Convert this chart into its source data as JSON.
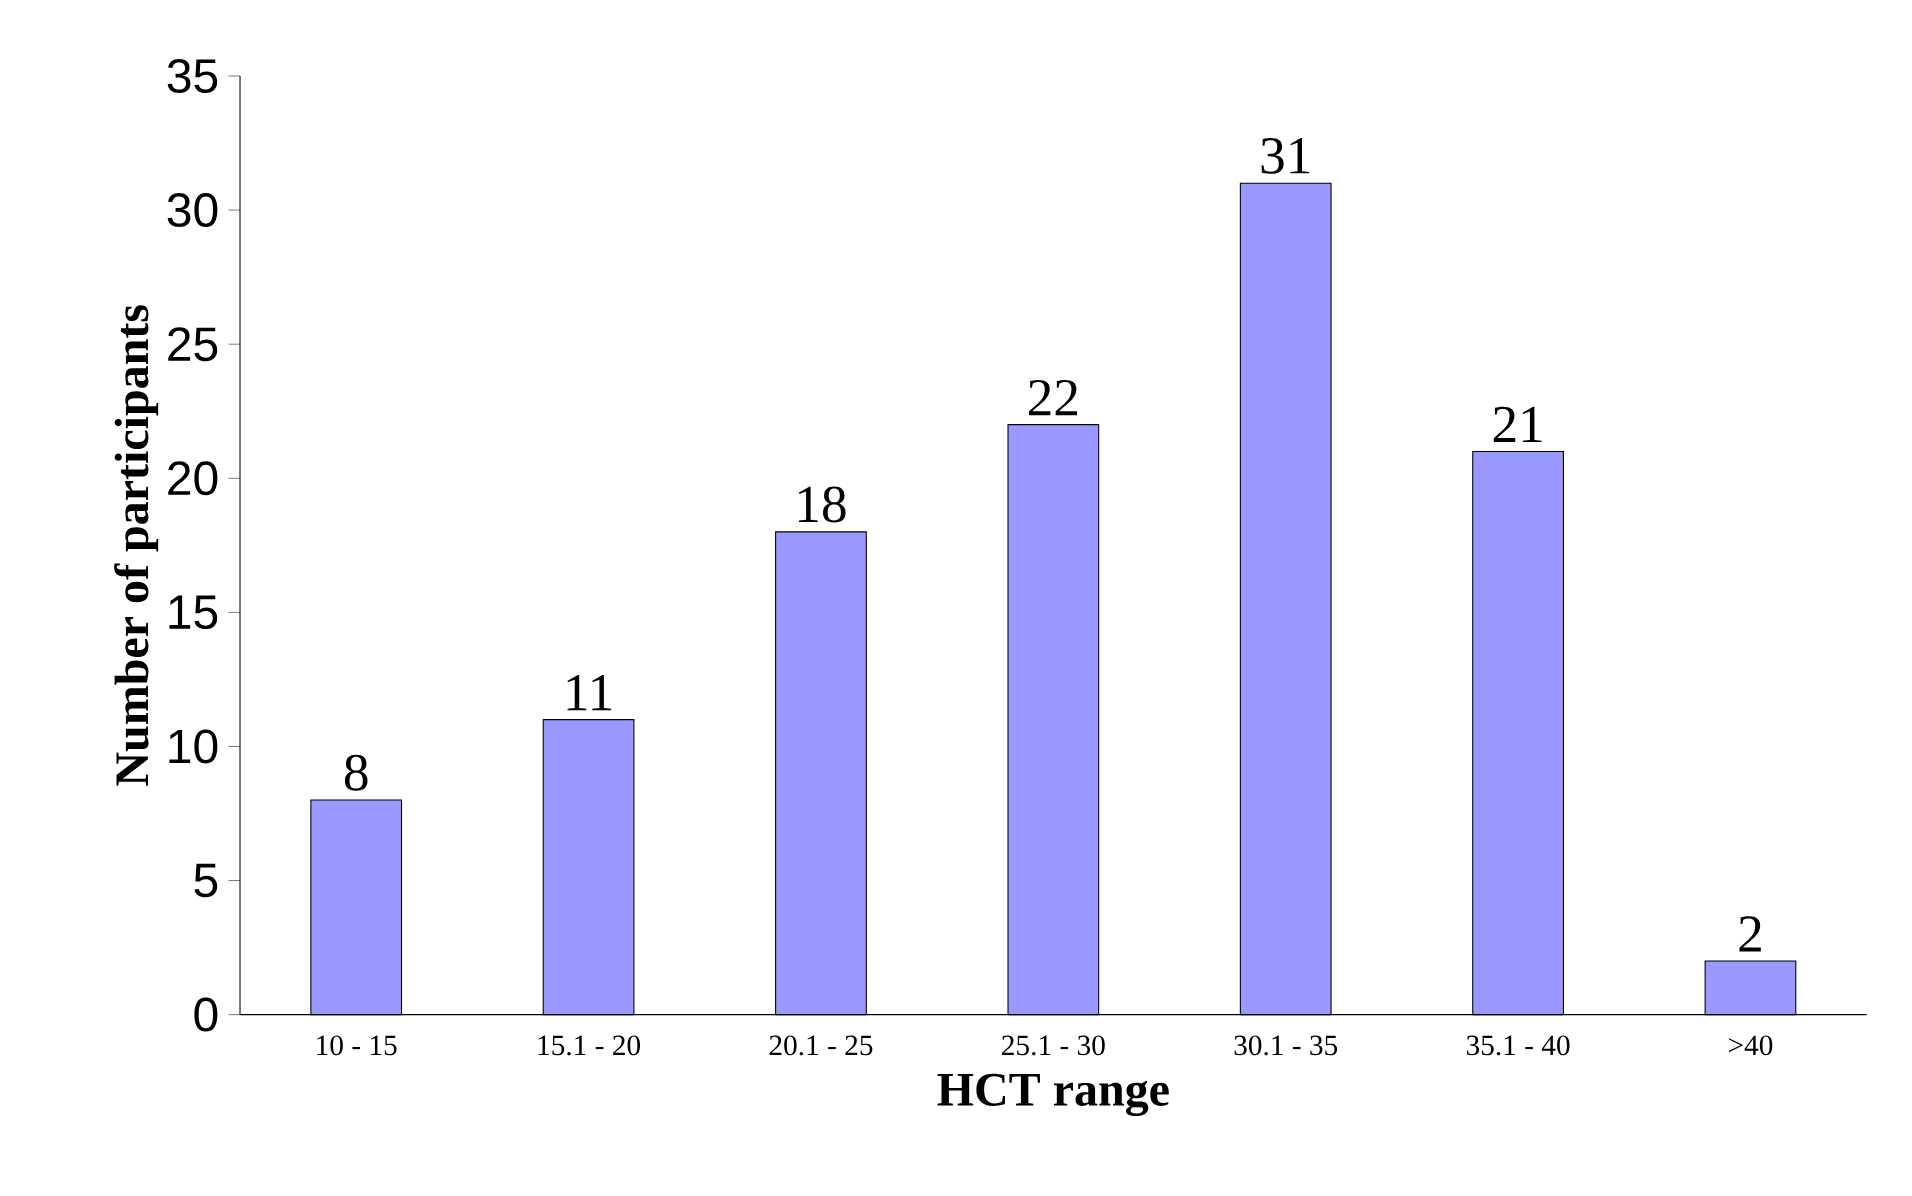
{
  "chart_data": {
    "type": "bar",
    "xlabel": "HCT range",
    "ylabel": "Number of participants",
    "categories": [
      "10 - 15",
      "15.1 - 20",
      "20.1 - 25",
      "25.1 - 30",
      "30.1 - 35",
      "35.1 - 40",
      ">40"
    ],
    "values": [
      8,
      11,
      18,
      22,
      31,
      21,
      2
    ],
    "color": "#9999ff",
    "ylim": [
      0,
      35
    ],
    "yticks": [
      0,
      5,
      10,
      15,
      20,
      25,
      30,
      35
    ],
    "data_labels": true
  }
}
